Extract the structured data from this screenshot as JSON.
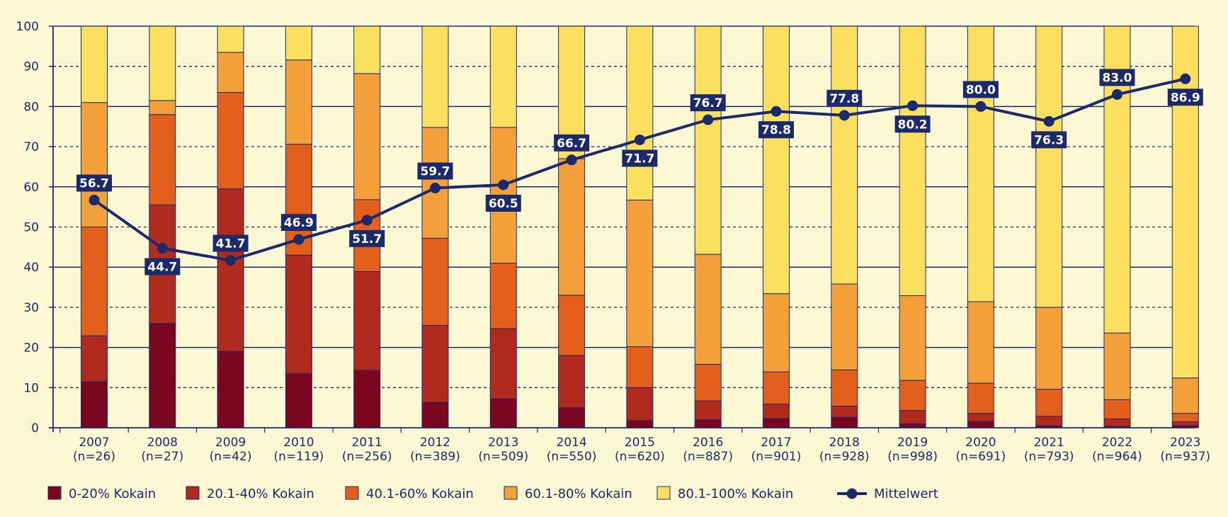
{
  "chart_data": {
    "type": "bar",
    "stacked": true,
    "categories": [
      "2007",
      "2008",
      "2009",
      "2010",
      "2011",
      "2012",
      "2013",
      "2014",
      "2015",
      "2016",
      "2017",
      "2018",
      "2019",
      "2020",
      "2021",
      "2022",
      "2023"
    ],
    "category_n": [
      "(n=26)",
      "(n=27)",
      "(n=42)",
      "(n=119)",
      "(n=256)",
      "(n=389)",
      "(n=509)",
      "(n=550)",
      "(n=620)",
      "(n=887)",
      "(n=901)",
      "(n=928)",
      "(n=998)",
      "(n=691)",
      "(n=793)",
      "(n=964)",
      "(n=937)"
    ],
    "ylim": [
      0,
      100
    ],
    "yticks": [
      0,
      10,
      20,
      30,
      40,
      50,
      60,
      70,
      80,
      90,
      100
    ],
    "grid": true,
    "legend_position": "bottom",
    "colors": {
      "background": "#fbf8d3",
      "axis": "#1c2a6b",
      "mean_line": "#1c2a6b"
    },
    "series": [
      {
        "name": "0-20% Kokain",
        "color": "#7a0620",
        "values": [
          11.5,
          26.0,
          19.0,
          13.5,
          14.3,
          6.3,
          7.2,
          5.0,
          1.8,
          2.0,
          2.3,
          2.6,
          1.0,
          1.6,
          0.5,
          0.3,
          0.5
        ]
      },
      {
        "name": "20.1-40% Kokain",
        "color": "#b02a1d",
        "values": [
          11.4,
          29.5,
          40.5,
          29.5,
          24.6,
          19.2,
          17.5,
          13.0,
          8.2,
          4.7,
          3.6,
          2.8,
          3.3,
          2.0,
          2.4,
          1.9,
          1.0
        ]
      },
      {
        "name": "40.1-60% Kokain",
        "color": "#e35f1c",
        "values": [
          27.1,
          22.5,
          24.0,
          27.6,
          17.9,
          21.7,
          16.3,
          15.0,
          10.2,
          9.1,
          8.0,
          9.0,
          7.5,
          7.5,
          6.7,
          4.8,
          2.1
        ]
      },
      {
        "name": "60.1-80% Kokain",
        "color": "#f3a03b",
        "values": [
          31.0,
          3.5,
          10.0,
          21.0,
          31.4,
          27.6,
          33.8,
          34.0,
          36.5,
          27.4,
          19.5,
          21.4,
          21.1,
          20.3,
          20.4,
          16.6,
          8.8
        ]
      },
      {
        "name": "80.1-100% Kokain",
        "color": "#fbe060",
        "values": [
          19.0,
          18.5,
          6.5,
          8.4,
          11.8,
          25.2,
          25.2,
          33.0,
          43.3,
          56.8,
          66.6,
          64.2,
          67.1,
          68.6,
          70.0,
          76.4,
          87.6
        ]
      }
    ],
    "mean": {
      "name": "Mittelwert",
      "values": [
        56.7,
        44.7,
        41.7,
        46.9,
        51.7,
        59.7,
        60.5,
        66.7,
        71.7,
        76.7,
        78.8,
        77.8,
        80.2,
        80.0,
        76.3,
        83.0,
        86.9
      ],
      "labels": [
        "56.7",
        "44.7",
        "41.7",
        "46.9",
        "51.7",
        "59.7",
        "60.5",
        "66.7",
        "71.7",
        "76.7",
        "78.8",
        "77.8",
        "80.2",
        "80.0",
        "76.3",
        "83.0",
        "86.9"
      ],
      "label_side": [
        "above",
        "below",
        "above",
        "above",
        "below",
        "above",
        "below",
        "above",
        "below",
        "above",
        "below",
        "above",
        "below",
        "above",
        "below",
        "above",
        "below"
      ]
    }
  }
}
